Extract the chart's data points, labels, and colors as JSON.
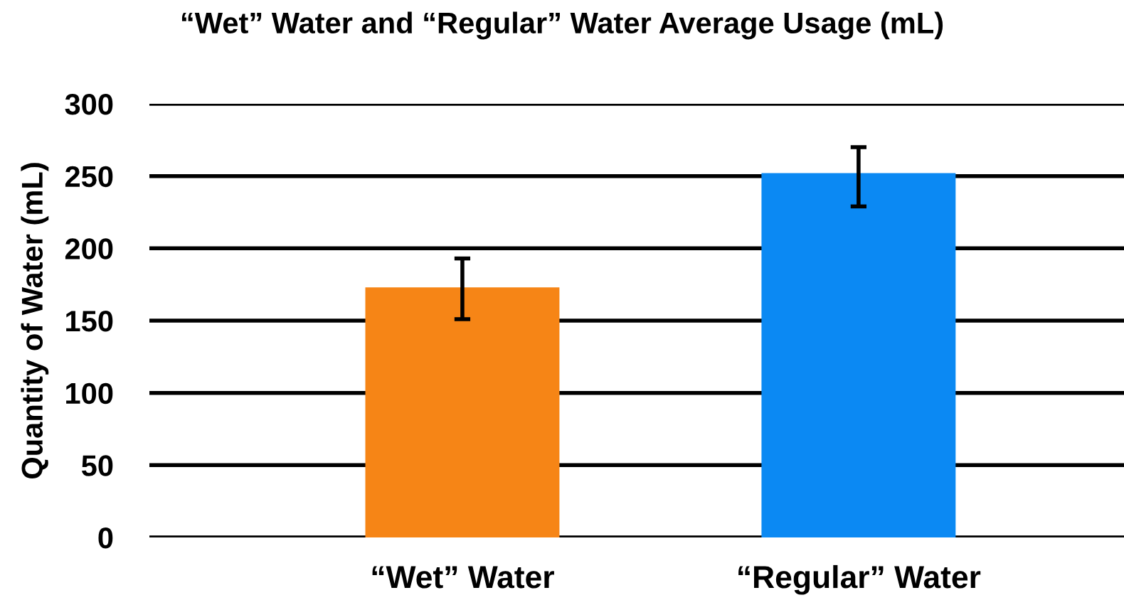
{
  "chart_data": {
    "type": "bar",
    "title": "“Wet” Water and “Regular” Water Average Usage (mL)",
    "ylabel": "Quantity of Water (mL)",
    "categories": [
      "“Wet” Water",
      "“Regular” Water"
    ],
    "values": [
      173,
      252
    ],
    "colors": [
      "#f68516",
      "#0b89f3"
    ],
    "errors": [
      [
        151,
        193
      ],
      [
        229,
        270
      ]
    ],
    "ylim": [
      0,
      300
    ],
    "yticks": [
      0,
      50,
      100,
      150,
      200,
      250,
      300
    ],
    "grid": "y"
  }
}
